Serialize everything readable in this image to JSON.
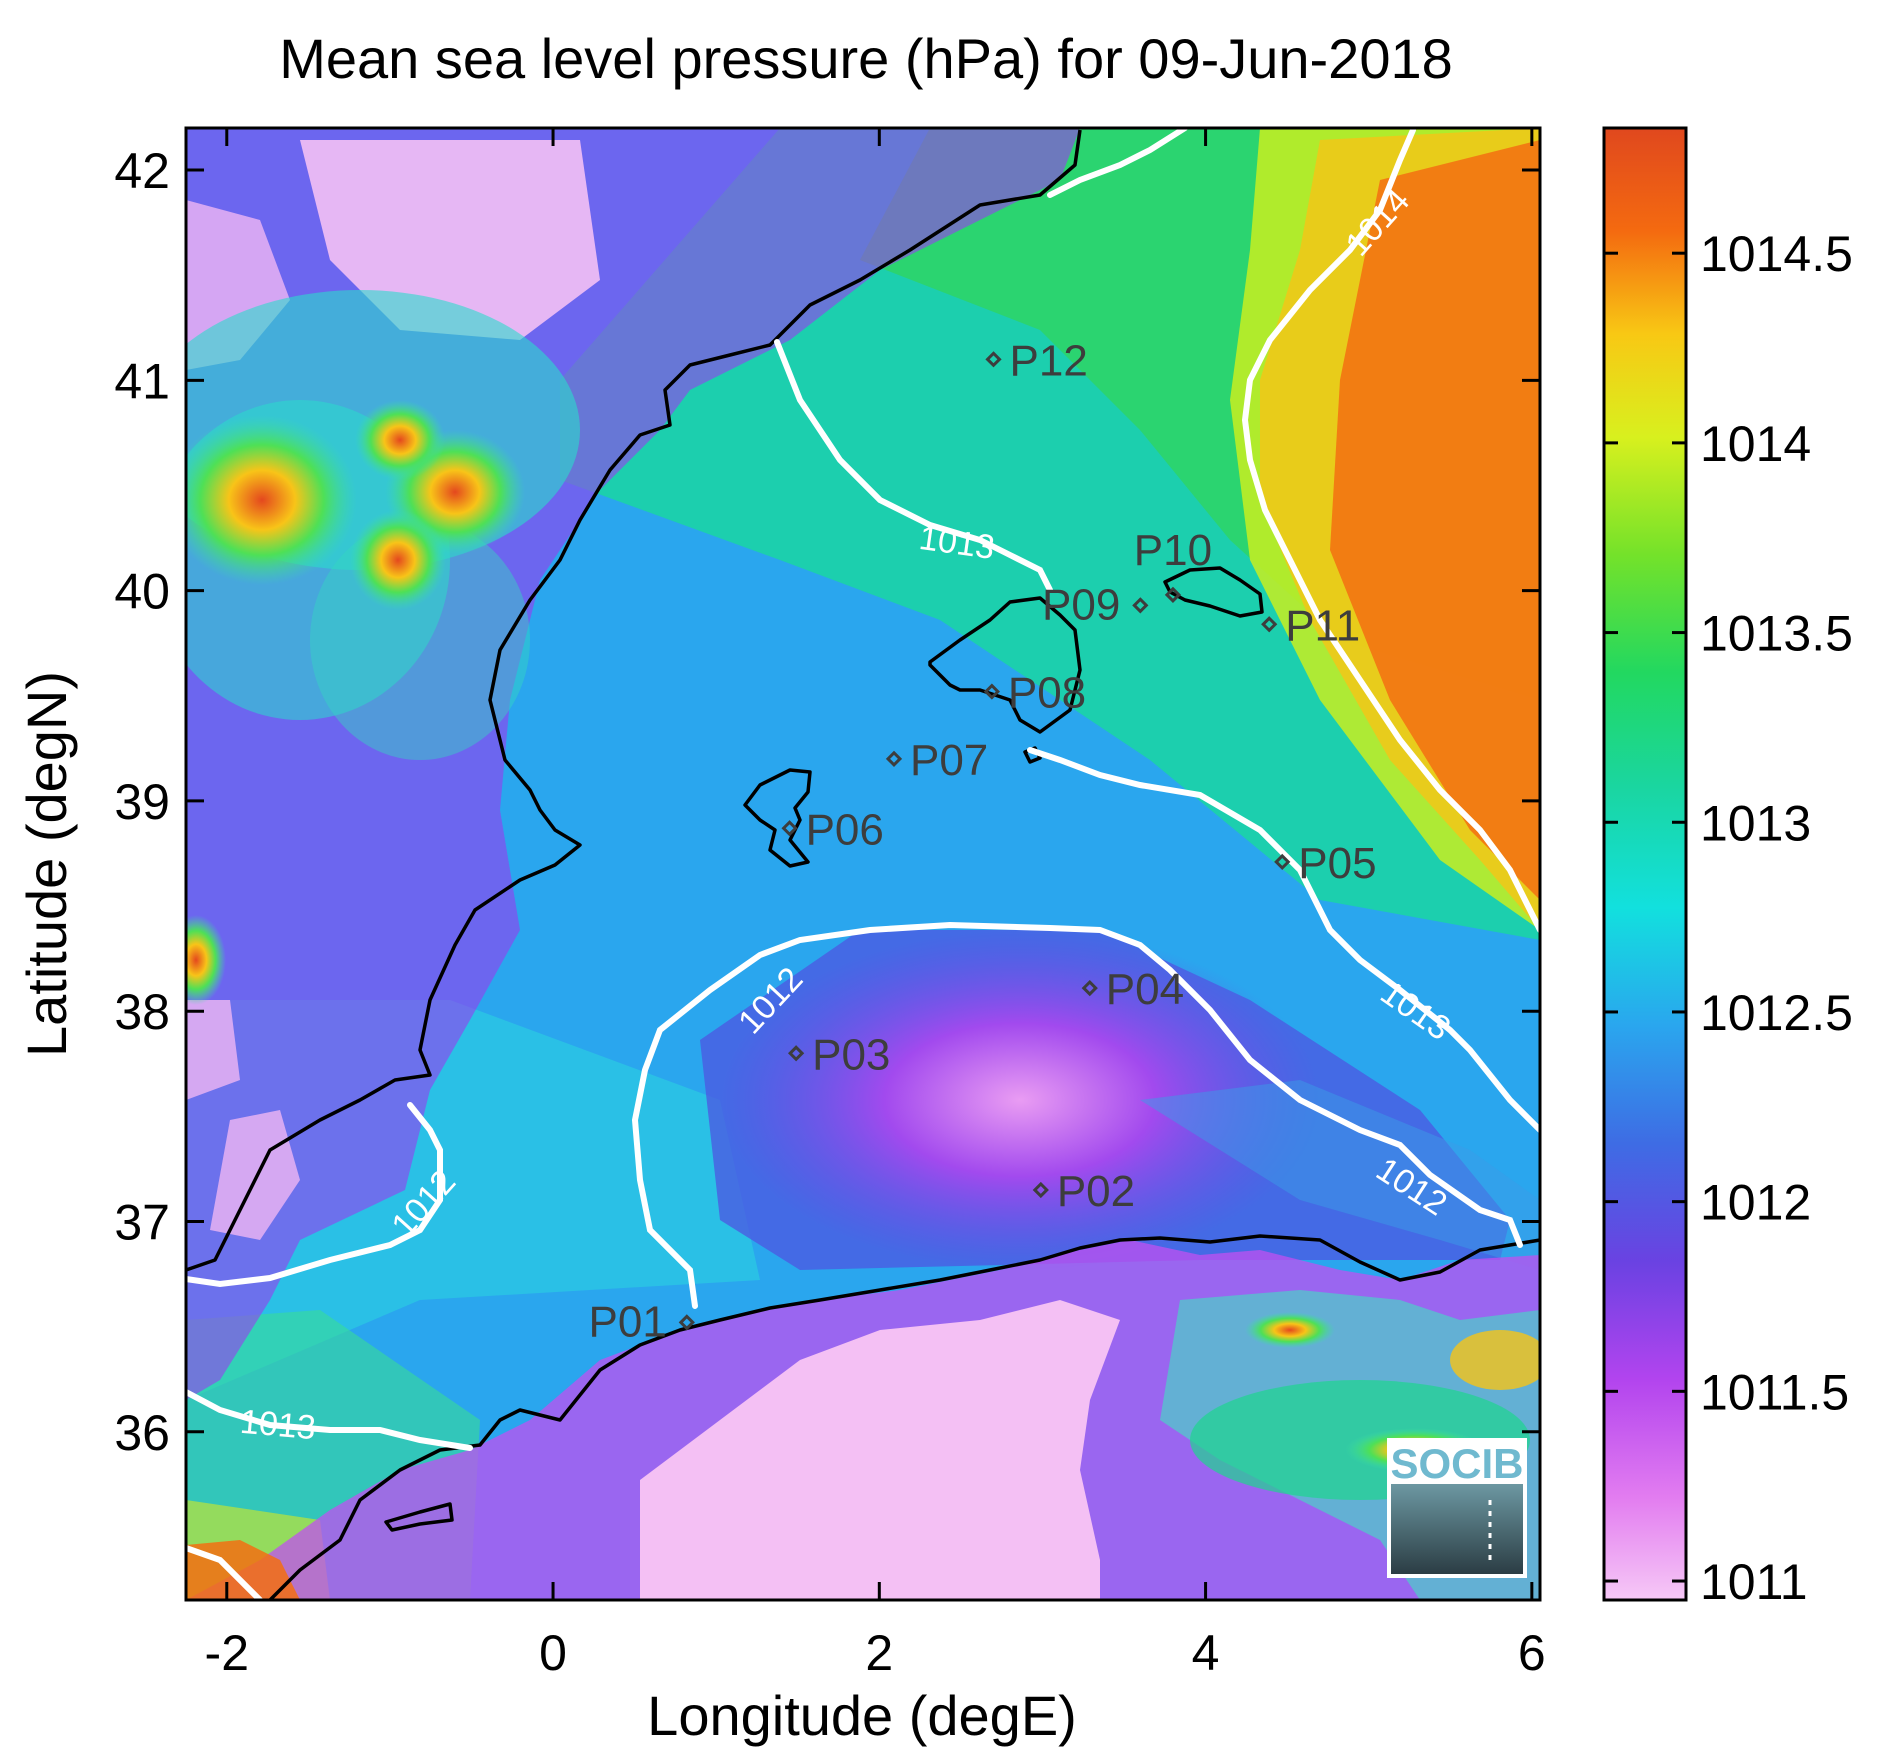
{
  "title": "Mean sea level pressure (hPa) for 09-Jun-2018",
  "xlabel": "Longitude (degE)",
  "ylabel": "Latitude (degN)",
  "x_ticks": [
    "-2",
    "0",
    "2",
    "4",
    "6"
  ],
  "y_ticks": [
    "36",
    "37",
    "38",
    "39",
    "40",
    "41",
    "42"
  ],
  "colorbar": {
    "ticks": [
      "1011",
      "1011.5",
      "1012",
      "1012.5",
      "1013",
      "1013.5",
      "1014",
      "1014.5"
    ],
    "min": 1010.95,
    "max": 1014.83
  },
  "contour_labels": [
    "1012",
    "1012",
    "1012",
    "1013",
    "1013",
    "1013",
    "1014"
  ],
  "points": [
    {
      "id": "P01",
      "lon": 0.82,
      "lat": 36.52
    },
    {
      "id": "P02",
      "lon": 2.99,
      "lat": 37.15
    },
    {
      "id": "P03",
      "lon": 1.49,
      "lat": 37.8
    },
    {
      "id": "P04",
      "lon": 3.29,
      "lat": 38.11
    },
    {
      "id": "P05",
      "lon": 4.47,
      "lat": 38.71
    },
    {
      "id": "P06",
      "lon": 1.45,
      "lat": 38.87
    },
    {
      "id": "P07",
      "lon": 2.09,
      "lat": 39.2
    },
    {
      "id": "P08",
      "lon": 2.69,
      "lat": 39.52
    },
    {
      "id": "P09",
      "lon": 3.6,
      "lat": 39.93
    },
    {
      "id": "P10",
      "lon": 3.8,
      "lat": 39.98
    },
    {
      "id": "P11",
      "lon": 4.39,
      "lat": 39.84
    },
    {
      "id": "P12",
      "lon": 2.7,
      "lat": 41.1
    }
  ],
  "logo_text": "SOCIB",
  "colors": {
    "low": "#f4c0f4",
    "mid": "#00e0e0",
    "high": "#e24418",
    "contour": "#ffffff",
    "coast": "#000000",
    "point": "#3d3d3d"
  },
  "chart_data": {
    "type": "heatmap",
    "title": "Mean sea level pressure (hPa) for 09-Jun-2018",
    "xlabel": "Longitude (degE)",
    "ylabel": "Latitude (degN)",
    "xlim": [
      -2.25,
      6.05
    ],
    "ylim": [
      35.2,
      42.2
    ],
    "clim": [
      1010.95,
      1014.83
    ],
    "grid": false,
    "colorbar": "right",
    "contour_levels": [
      1012,
      1013,
      1014
    ],
    "named_points": [
      "P01",
      "P02",
      "P03",
      "P04",
      "P05",
      "P06",
      "P07",
      "P08",
      "P09",
      "P10",
      "P11",
      "P12"
    ]
  }
}
